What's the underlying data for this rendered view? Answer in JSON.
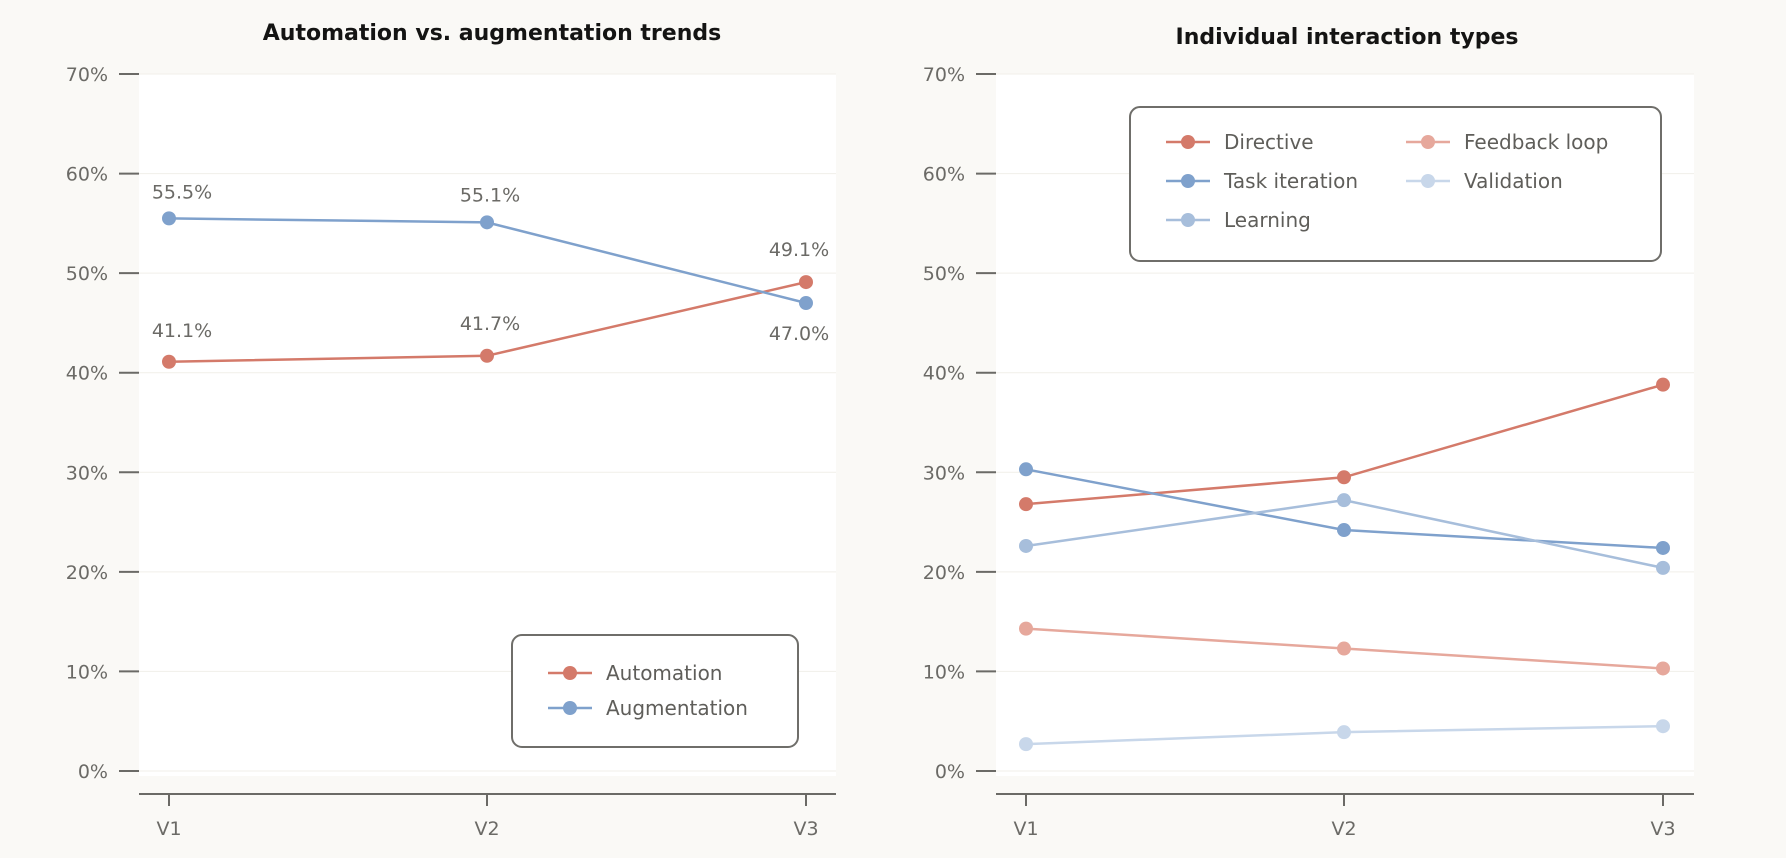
{
  "chart_data": [
    {
      "type": "line",
      "title": "Automation vs. augmentation trends",
      "categories": [
        "V1",
        "V2",
        "V3"
      ],
      "ylim": [
        0,
        70
      ],
      "yticks": [
        0,
        10,
        20,
        30,
        40,
        50,
        60,
        70
      ],
      "ytick_labels": [
        "0%",
        "10%",
        "20%",
        "30%",
        "40%",
        "50%",
        "60%",
        "70%"
      ],
      "legend_position": "bottom-right",
      "show_data_labels": true,
      "series": [
        {
          "name": "Automation",
          "color": "#d47a6a",
          "values": [
            41.1,
            41.7,
            49.1
          ],
          "labels": [
            "41.1%",
            "41.7%",
            "49.1%"
          ]
        },
        {
          "name": "Augmentation",
          "color": "#7fa1cc",
          "values": [
            55.5,
            55.1,
            47.0
          ],
          "labels": [
            "55.5%",
            "55.1%",
            "47.0%"
          ]
        }
      ]
    },
    {
      "type": "line",
      "title": "Individual interaction types",
      "categories": [
        "V1",
        "V2",
        "V3"
      ],
      "ylim": [
        0,
        70
      ],
      "yticks": [
        0,
        10,
        20,
        30,
        40,
        50,
        60,
        70
      ],
      "ytick_labels": [
        "0%",
        "10%",
        "20%",
        "30%",
        "40%",
        "50%",
        "60%",
        "70%"
      ],
      "legend_position": "top",
      "show_data_labels": false,
      "series": [
        {
          "name": "Directive",
          "color": "#d47a6a",
          "values": [
            26.8,
            29.5,
            38.8
          ]
        },
        {
          "name": "Feedback loop",
          "color": "#e6a89c",
          "values": [
            14.3,
            12.3,
            10.3
          ]
        },
        {
          "name": "Task iteration",
          "color": "#7fa1cc",
          "values": [
            30.3,
            24.2,
            22.4
          ]
        },
        {
          "name": "Validation",
          "color": "#c8d7ea",
          "values": [
            2.7,
            3.9,
            4.5
          ]
        },
        {
          "name": "Learning",
          "color": "#a7bedb",
          "values": [
            22.6,
            27.2,
            20.4
          ]
        }
      ]
    }
  ]
}
